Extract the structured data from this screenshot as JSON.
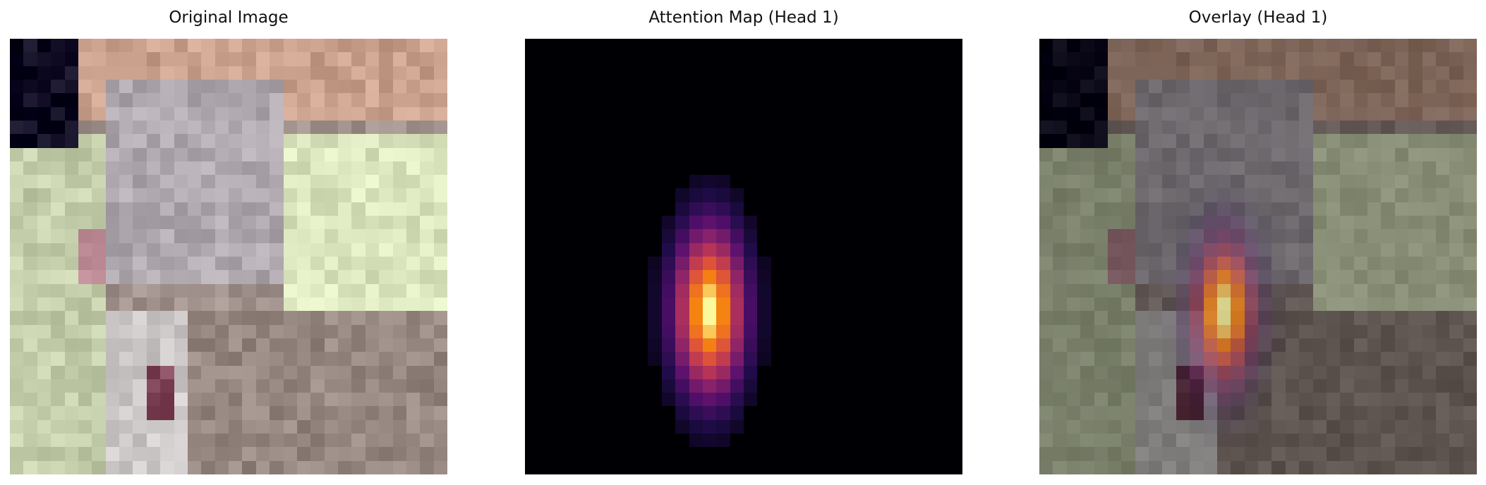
{
  "panels": [
    {
      "title": "Original Image",
      "kind": "original"
    },
    {
      "title": "Attention Map (Head 1)",
      "kind": "attention",
      "colormap": "inferno"
    },
    {
      "title": "Overlay (Head 1)",
      "kind": "overlay",
      "colormap": "inferno"
    }
  ],
  "colors": {
    "background": "#ffffff",
    "attention_background": "#000000"
  }
}
